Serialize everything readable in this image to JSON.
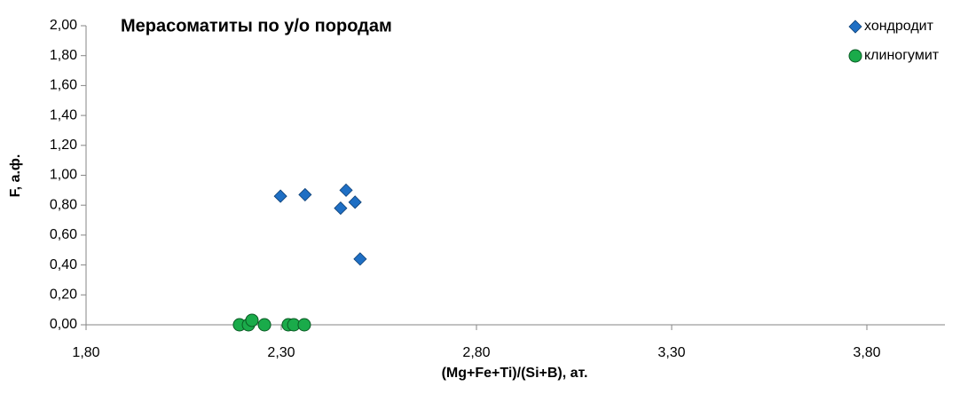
{
  "chart_data": {
    "type": "scatter",
    "title": "Мерасоматиты по у/о породам",
    "x_label": "(Mg+Fe+Ti)/(Si+B), ат.",
    "y_label": "F, а.ф.",
    "xlim": [
      1.8,
      4.0
    ],
    "ylim": [
      0,
      2.0
    ],
    "xticks": [
      {
        "value": 1.8,
        "label": "1,80"
      },
      {
        "value": 2.3,
        "label": "2,30"
      },
      {
        "value": 2.8,
        "label": "2,80"
      },
      {
        "value": 3.3,
        "label": "3,30"
      },
      {
        "value": 3.8,
        "label": "3,80"
      }
    ],
    "yticks": [
      {
        "value": 0,
        "label": "0,00"
      },
      {
        "value": 0.2,
        "label": "0,20"
      },
      {
        "value": 0.4,
        "label": "0,40"
      },
      {
        "value": 0.6,
        "label": "0,60"
      },
      {
        "value": 0.8,
        "label": "0,80"
      },
      {
        "value": 1.0,
        "label": "1,00"
      },
      {
        "value": 1.2,
        "label": "1,20"
      },
      {
        "value": 1.4,
        "label": "1,40"
      },
      {
        "value": 1.6,
        "label": "1,60"
      },
      {
        "value": 1.8,
        "label": "1,80"
      },
      {
        "value": 2.0,
        "label": "2,00"
      }
    ],
    "grid": false,
    "legend": "upper right",
    "series": [
      {
        "name": "хондродит",
        "color": "#1f6fc4",
        "marker": "diamond",
        "x": [
          2.298,
          2.361,
          2.466,
          2.452,
          2.489,
          2.502
        ],
        "values": [
          0.86,
          0.87,
          0.9,
          0.78,
          0.82,
          0.44
        ]
      },
      {
        "name": "клиногумит",
        "color": "#1aab4a",
        "marker": "circle",
        "x": [
          2.193,
          2.216,
          2.225,
          2.257,
          2.318,
          2.332,
          2.359
        ],
        "values": [
          0,
          0,
          0.03,
          0,
          0,
          0,
          0
        ]
      }
    ]
  }
}
